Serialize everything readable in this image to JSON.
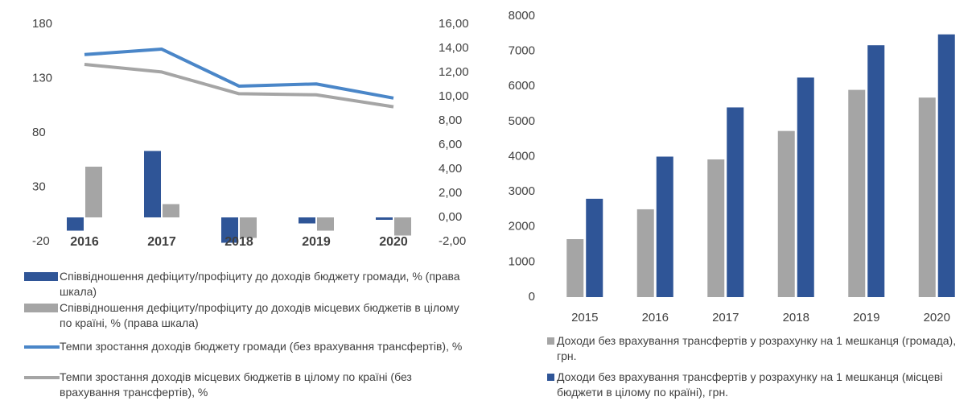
{
  "chart_data": [
    {
      "type": "combo",
      "categories": [
        "2016",
        "2017",
        "2018",
        "2019",
        "2020"
      ],
      "ylim": [
        -20,
        180
      ],
      "yticks": [
        -20,
        30,
        80,
        130,
        180
      ],
      "y2lim": [
        -2,
        16
      ],
      "y2ticks": [
        {
          "value": -2,
          "label": "-2,00"
        },
        {
          "value": 0,
          "label": "0,00"
        },
        {
          "value": 2,
          "label": "2,00"
        },
        {
          "value": 4,
          "label": "4,00"
        },
        {
          "value": 6,
          "label": "6,00"
        },
        {
          "value": 8,
          "label": "8,00"
        },
        {
          "value": 10,
          "label": "10,00"
        },
        {
          "value": 12,
          "label": "12,00"
        },
        {
          "value": 14,
          "label": "14,00"
        },
        {
          "value": 16,
          "label": "16,00"
        }
      ],
      "series": [
        {
          "name": "Співвідношення дефіциту/профіциту до доходів бюджету громади, % (права шкала)",
          "type": "bar",
          "axis": "y2",
          "color": "#2f5597",
          "values": [
            -1.1,
            5.5,
            -2.1,
            -0.5,
            -0.2
          ]
        },
        {
          "name": "Співвідношення дефіциту/профіциту до доходів місцевих бюджетів в цілому по країні, % (права шкала)",
          "type": "bar",
          "axis": "y2",
          "color": "#a5a5a5",
          "values": [
            4.2,
            1.1,
            -1.7,
            -1.1,
            -1.5
          ]
        },
        {
          "name": "Темпи зростання доходів бюджету громади (без врахування трансфертів), %",
          "type": "line",
          "color": "#4a86c8",
          "values": [
            152,
            157,
            123,
            125,
            112
          ]
        },
        {
          "name": "Темпи зростання доходів місцевих бюджетів в цілому по країні (без врахування трансфертів), %",
          "type": "line",
          "color": "#a5a5a5",
          "values": [
            143,
            136,
            116,
            115,
            104
          ]
        }
      ]
    },
    {
      "type": "bar",
      "categories": [
        "2015",
        "2016",
        "2017",
        "2018",
        "2019",
        "2020"
      ],
      "ylim": [
        0,
        8000
      ],
      "yticks": [
        0,
        1000,
        2000,
        3000,
        4000,
        5000,
        6000,
        7000,
        8000
      ],
      "series": [
        {
          "name": "Доходи без врахування трансфертів у розрахунку на 1 мешканця (громада), грн.",
          "color": "#a5a5a5",
          "values": [
            1650,
            2500,
            3920,
            4730,
            5900,
            5680
          ]
        },
        {
          "name": "Доходи без врахування трансфертів у розрахунку на 1 мешканця (місцеві бюджети в цілому по країні), грн.",
          "color": "#2f5597",
          "values": [
            2800,
            4000,
            5400,
            6250,
            7170,
            7480
          ]
        }
      ]
    }
  ]
}
